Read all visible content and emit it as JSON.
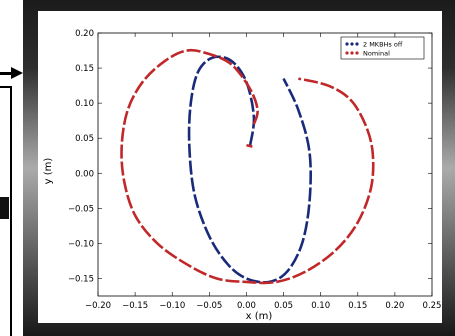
{
  "chart_data": {
    "type": "scatter",
    "title": "",
    "xlabel": "x (m)",
    "ylabel": "y (m)",
    "xlim": [
      -0.2,
      0.25
    ],
    "ylim": [
      -0.175,
      0.2
    ],
    "xticks": [
      "−0.20",
      "−0.15",
      "−0.10",
      "−0.05",
      "0.00",
      "0.05",
      "0.10",
      "0.15",
      "0.20",
      "0.25"
    ],
    "yticks": [
      "−0.15",
      "−0.10",
      "−0.05",
      "0.00",
      "0.05",
      "0.10",
      "0.15",
      "0.20"
    ],
    "xtick_values": [
      -0.2,
      -0.15,
      -0.1,
      -0.05,
      0.0,
      0.05,
      0.1,
      0.15,
      0.2,
      0.25
    ],
    "ytick_values": [
      -0.15,
      -0.1,
      -0.05,
      0.0,
      0.05,
      0.1,
      0.15,
      0.2
    ],
    "grid": false,
    "legend_position": "top-right",
    "series": [
      {
        "name": "2 MKBHs off",
        "color": "#1a2a7a",
        "marker": "dot",
        "curves": [
          [
            [
              0.005,
              0.04
            ],
            [
              0.01,
              0.08
            ],
            [
              0.0,
              0.13
            ],
            [
              -0.02,
              0.16
            ],
            [
              -0.045,
              0.165
            ],
            [
              -0.065,
              0.145
            ],
            [
              -0.075,
              0.1
            ],
            [
              -0.077,
              0.04
            ],
            [
              -0.07,
              -0.03
            ],
            [
              -0.05,
              -0.09
            ],
            [
              -0.025,
              -0.13
            ],
            [
              0.0,
              -0.15
            ],
            [
              0.03,
              -0.155
            ],
            [
              0.055,
              -0.14
            ],
            [
              0.075,
              -0.1
            ],
            [
              0.085,
              -0.04
            ],
            [
              0.085,
              0.03
            ],
            [
              0.07,
              0.09
            ],
            [
              0.05,
              0.135
            ]
          ]
        ]
      },
      {
        "name": "Nominal",
        "color": "#c0282a",
        "marker": "dot",
        "curves": [
          [
            [
              0.01,
              0.07
            ],
            [
              0.015,
              0.09
            ],
            [
              0.005,
              0.12
            ],
            [
              -0.02,
              0.155
            ],
            [
              -0.05,
              0.17
            ],
            [
              -0.08,
              0.175
            ],
            [
              -0.11,
              0.16
            ],
            [
              -0.14,
              0.13
            ],
            [
              -0.16,
              0.09
            ],
            [
              -0.168,
              0.04
            ],
            [
              -0.165,
              -0.01
            ],
            [
              -0.15,
              -0.06
            ],
            [
              -0.12,
              -0.1
            ],
            [
              -0.08,
              -0.13
            ],
            [
              -0.04,
              -0.15
            ],
            [
              0.0,
              -0.155
            ],
            [
              0.04,
              -0.155
            ],
            [
              0.08,
              -0.14
            ],
            [
              0.12,
              -0.11
            ],
            [
              0.15,
              -0.07
            ],
            [
              0.168,
              -0.02
            ],
            [
              0.17,
              0.03
            ],
            [
              0.16,
              0.07
            ],
            [
              0.14,
              0.105
            ],
            [
              0.11,
              0.125
            ],
            [
              0.07,
              0.135
            ]
          ],
          [
            [
              0.0,
              0.04
            ],
            [
              0.008,
              0.038
            ]
          ]
        ]
      }
    ]
  }
}
